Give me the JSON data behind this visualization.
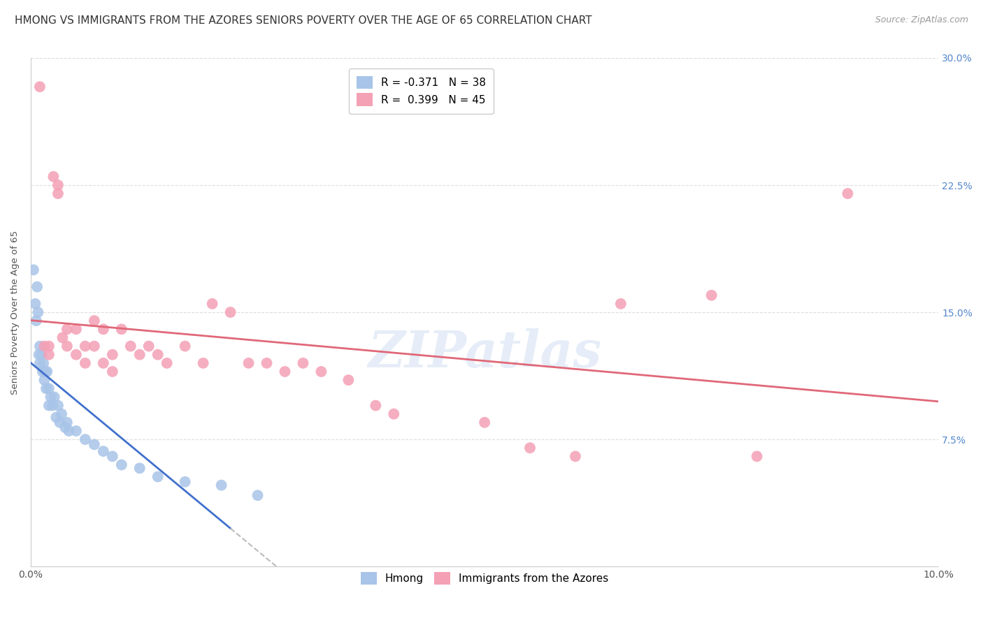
{
  "title": "HMONG VS IMMIGRANTS FROM THE AZORES SENIORS POVERTY OVER THE AGE OF 65 CORRELATION CHART",
  "source": "Source: ZipAtlas.com",
  "ylabel": "Seniors Poverty Over the Age of 65",
  "xlim": [
    0.0,
    0.1
  ],
  "ylim": [
    0.0,
    0.3
  ],
  "yticks": [
    0.0,
    0.075,
    0.15,
    0.225,
    0.3
  ],
  "ytick_labels_left": [
    "",
    "",
    "",
    "",
    ""
  ],
  "ytick_labels_right": [
    "",
    "7.5%",
    "15.0%",
    "22.5%",
    "30.0%"
  ],
  "xticks": [
    0.0,
    0.02,
    0.04,
    0.06,
    0.08,
    0.1
  ],
  "xtick_labels": [
    "0.0%",
    "",
    "",
    "",
    "",
    "10.0%"
  ],
  "hmong_R": -0.371,
  "hmong_N": 38,
  "azores_R": 0.399,
  "azores_N": 45,
  "hmong_color": "#a8c4e8",
  "azores_color": "#f4a0b5",
  "hmong_line_color": "#4070cc",
  "azores_line_color": "#e06878",
  "trendline_dashed_color": "#bbbbbb",
  "background_color": "#ffffff",
  "grid_color": "#dddddd",
  "watermark_text": "ZIPatlas",
  "hmong_x": [
    0.0003,
    0.0005,
    0.0006,
    0.0007,
    0.0008,
    0.0009,
    0.001,
    0.001,
    0.0012,
    0.0013,
    0.0014,
    0.0015,
    0.0016,
    0.0017,
    0.0018,
    0.002,
    0.002,
    0.0022,
    0.0024,
    0.0026,
    0.0028,
    0.003,
    0.0032,
    0.0034,
    0.0038,
    0.004,
    0.0042,
    0.005,
    0.006,
    0.007,
    0.008,
    0.009,
    0.01,
    0.012,
    0.014,
    0.017,
    0.021,
    0.025
  ],
  "hmong_y": [
    0.175,
    0.155,
    0.145,
    0.165,
    0.15,
    0.125,
    0.13,
    0.12,
    0.125,
    0.115,
    0.12,
    0.11,
    0.115,
    0.105,
    0.115,
    0.105,
    0.095,
    0.1,
    0.095,
    0.1,
    0.088,
    0.095,
    0.085,
    0.09,
    0.082,
    0.085,
    0.08,
    0.08,
    0.075,
    0.072,
    0.068,
    0.065,
    0.06,
    0.058,
    0.053,
    0.05,
    0.048,
    0.042
  ],
  "azores_x": [
    0.001,
    0.0015,
    0.002,
    0.002,
    0.0025,
    0.003,
    0.003,
    0.0035,
    0.004,
    0.004,
    0.005,
    0.005,
    0.006,
    0.006,
    0.007,
    0.007,
    0.008,
    0.008,
    0.009,
    0.009,
    0.01,
    0.011,
    0.012,
    0.013,
    0.014,
    0.015,
    0.017,
    0.019,
    0.02,
    0.022,
    0.024,
    0.026,
    0.028,
    0.03,
    0.032,
    0.035,
    0.038,
    0.04,
    0.05,
    0.055,
    0.06,
    0.065,
    0.075,
    0.08,
    0.09
  ],
  "azores_y": [
    0.283,
    0.13,
    0.13,
    0.125,
    0.23,
    0.225,
    0.22,
    0.135,
    0.14,
    0.13,
    0.14,
    0.125,
    0.13,
    0.12,
    0.145,
    0.13,
    0.14,
    0.12,
    0.125,
    0.115,
    0.14,
    0.13,
    0.125,
    0.13,
    0.125,
    0.12,
    0.13,
    0.12,
    0.155,
    0.15,
    0.12,
    0.12,
    0.115,
    0.12,
    0.115,
    0.11,
    0.095,
    0.09,
    0.085,
    0.07,
    0.065,
    0.155,
    0.16,
    0.065,
    0.22
  ],
  "title_fontsize": 11,
  "axis_label_fontsize": 9.5,
  "tick_label_fontsize": 10,
  "legend_fontsize": 11,
  "source_fontsize": 9
}
